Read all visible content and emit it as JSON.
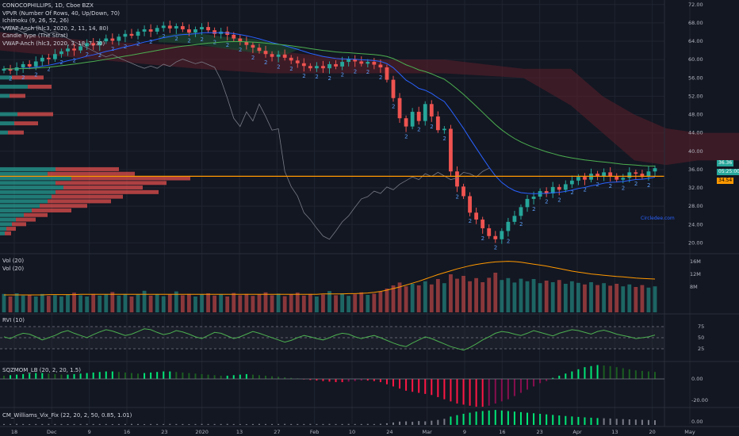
{
  "colors": {
    "background": "#131722",
    "grid": "#1f2430",
    "up": "#26a69a",
    "down": "#ef5350",
    "price_line": "#ff9800",
    "kumo": "#5d1f2a",
    "kumo_green": "#1e4630",
    "ema_green": "#4caf50",
    "ema_blue": "#2962ff",
    "axis_text": "#b2b5be"
  },
  "header": {
    "symbol": "CONOCOPHILLIPS, 1D, Cboe BZX",
    "indicators": [
      "VPVR (Number Of Rows, 40, Up/Down, 70)",
      "Ichimoku (9, 26, 52, 26)",
      "VWAP-Anch (hlc3, 2020, 2, 11, 14, 80)",
      "Candle Type (The Strat)",
      "VWAP-Anch (hlc3, 2020, 3, 18, 7, 30)"
    ]
  },
  "panes": {
    "vol_label": "Vol (20)",
    "vol_label2": "Vol (20)",
    "rvi_label": "RVI (10)",
    "sqz_label": "SQZMOM_LB (20, 2, 20, 1.5)",
    "cm_label": "CM_Williams_Vix_Fix (22, 20, 2, 50, 0.85, 1.01)"
  },
  "price_tags": {
    "tag1": "36.36",
    "tag2": "05:25:00",
    "tag3": "34.54"
  },
  "watermark": "Circledee.com",
  "chart_data": {
    "type": "candlestick",
    "price_axis": [
      "72.00",
      "68.00",
      "64.00",
      "60.00",
      "56.00",
      "52.00",
      "48.00",
      "44.00",
      "40.00",
      "36.00",
      "32.00",
      "28.00",
      "24.00",
      "20.00"
    ],
    "vol_axis": [
      "16M",
      "12M",
      "8M"
    ],
    "rvi_axis": [
      "75",
      "50",
      "25"
    ],
    "sqz_axis": [
      "0.00",
      "-20.00"
    ],
    "cm_axis": [
      "0.00"
    ],
    "time_axis": [
      "18",
      "Dec",
      "9",
      "16",
      "23",
      "2020",
      "13",
      "27",
      "Feb",
      "10",
      "24",
      "Mar",
      "9",
      "16",
      "23",
      "Apr",
      "13",
      "20",
      "May"
    ],
    "ylim": [
      18,
      73
    ],
    "candles_summary": {
      "start_approx": 58.0,
      "peak_approx": 67.5,
      "trough_approx": 20.8,
      "last_approx": 36.0
    },
    "closes": [
      58,
      57.6,
      58.3,
      59,
      58.5,
      59.6,
      60.4,
      60.1,
      61.2,
      61.8,
      62.4,
      62,
      62.9,
      63.6,
      63.1,
      64,
      64.6,
      64.1,
      65,
      65.6,
      65.2,
      66.1,
      66.6,
      66.1,
      66.9,
      67.4,
      66.8,
      67.3,
      66.6,
      65.9,
      66.6,
      67.1,
      66.4,
      65.6,
      66.1,
      65.4,
      64.6,
      63.9,
      63.2,
      62.6,
      61.9,
      61.2,
      60.6,
      61.1,
      60.4,
      59.8,
      59.2,
      58.6,
      58.1,
      58.6,
      58.1,
      59,
      58.5,
      59.5,
      60.1,
      59.6,
      59.1,
      59.5,
      58.9,
      58.3,
      55.6,
      51.6,
      47.2,
      45.4,
      48.6,
      46.6,
      50.3,
      47.6,
      44.6,
      44.9,
      35.6,
      32.3,
      30.2,
      26.6,
      25.1,
      23.2,
      21.5,
      20.8,
      22.6,
      24.6,
      25.9,
      27.8,
      29.6,
      30.1,
      31.3,
      30.8,
      32.2,
      31.6,
      32.8,
      33.6,
      34.4,
      33.8,
      35.1,
      34.5,
      35.4,
      34.6,
      33.8,
      34.2,
      35.4,
      35.1,
      34.4,
      35.6,
      36.3
    ],
    "volumes": [
      5.8,
      5,
      6,
      5.3,
      5.5,
      5,
      5.8,
      5.2,
      5.4,
      5,
      5.6,
      6.2,
      5.4,
      5,
      5.8,
      5.3,
      5.6,
      6.4,
      5.3,
      5.8,
      5,
      5.6,
      6.8,
      5.3,
      5.7,
      5.1,
      5.6,
      6.6,
      5.4,
      5.8,
      5,
      5.6,
      6,
      5.3,
      5.7,
      5,
      6.1,
      5.4,
      5.8,
      5.2,
      5.6,
      6.3,
      5.4,
      5.9,
      5.1,
      5.7,
      6.2,
      5.3,
      5.8,
      5,
      5.6,
      6.7,
      5.4,
      6,
      5.2,
      5.7,
      6.3,
      5.5,
      5.9,
      6.5,
      7.5,
      8.5,
      9.4,
      8.2,
      9,
      8.5,
      9.8,
      8.8,
      10.5,
      9.2,
      12,
      10.6,
      11.5,
      9.8,
      10.8,
      9.5,
      10.9,
      12.5,
      10.2,
      10.8,
      9.4,
      10.6,
      9.8,
      10.5,
      9.2,
      10,
      9.5,
      10.2,
      9,
      9.8,
      9.3,
      8.8,
      9.5,
      8.6,
      9.2,
      8.4,
      9,
      8.2,
      8.8,
      8,
      8.6,
      7.8,
      8.2
    ],
    "vol_ma": [
      5.5,
      5.5,
      5.5,
      5.5,
      5.5,
      5.5,
      5.5,
      5.6,
      5.6,
      5.6,
      5.6,
      5.6,
      5.7,
      5.7,
      5.7,
      5.7,
      5.7,
      5.7,
      5.7,
      5.7,
      5.7,
      5.7,
      5.7,
      5.7,
      5.7,
      5.7,
      5.7,
      5.7,
      5.7,
      5.7,
      5.7,
      5.7,
      5.7,
      5.7,
      5.7,
      5.7,
      5.7,
      5.7,
      5.7,
      5.7,
      5.7,
      5.7,
      5.7,
      5.7,
      5.7,
      5.7,
      5.7,
      5.7,
      5.7,
      5.7,
      5.8,
      5.8,
      5.8,
      5.8,
      5.9,
      5.9,
      6,
      6.1,
      6.3,
      6.6,
      7,
      7.5,
      8,
      8.6,
      9.2,
      9.8,
      10.5,
      11.2,
      11.9,
      12.5,
      13.1,
      13.7,
      14.2,
      14.7,
      15.1,
      15.4,
      15.7,
      15.9,
      16,
      16.1,
      16,
      15.8,
      15.5,
      15.2,
      14.9,
      14.6,
      14.2,
      13.8,
      13.4,
      13,
      12.7,
      12.4,
      12.1,
      11.9,
      11.7,
      11.5,
      11.3,
      11.2,
      11,
      10.8,
      10.7,
      10.6,
      10.5
    ],
    "rvi": [
      52,
      48,
      55,
      60,
      58,
      52,
      45,
      50,
      55,
      62,
      66,
      60,
      55,
      50,
      57,
      63,
      68,
      65,
      60,
      55,
      58,
      64,
      70,
      68,
      62,
      57,
      60,
      66,
      63,
      58,
      52,
      48,
      55,
      62,
      60,
      54,
      48,
      52,
      58,
      64,
      60,
      55,
      50,
      45,
      40,
      44,
      50,
      55,
      52,
      48,
      45,
      50,
      56,
      60,
      58,
      52,
      48,
      52,
      55,
      50,
      44,
      38,
      33,
      30,
      38,
      45,
      52,
      48,
      42,
      36,
      30,
      26,
      22,
      28,
      36,
      45,
      52,
      60,
      64,
      62,
      58,
      55,
      60,
      66,
      62,
      58,
      54,
      60,
      64,
      68,
      66,
      62,
      58,
      64,
      67,
      63,
      58,
      55,
      52,
      48,
      50,
      52,
      56
    ],
    "sqz": [
      3,
      3.5,
      4,
      4.5,
      5,
      5.5,
      5.5,
      5,
      4.5,
      4,
      4,
      4.5,
      5,
      5.5,
      6,
      6.5,
      7,
      7,
      6.5,
      6,
      5.5,
      5,
      5.5,
      6,
      6.5,
      7,
      7,
      6.5,
      6,
      5.5,
      5,
      4.5,
      4,
      3.5,
      3,
      3,
      3.5,
      4,
      4.5,
      4,
      3.5,
      3,
      2.5,
      2,
      1.5,
      1,
      0.5,
      -0.5,
      -1,
      -1.5,
      -2,
      -2.5,
      -3,
      -3,
      -2.5,
      -2,
      -1.5,
      -1.5,
      -2,
      -3,
      -5,
      -7,
      -9,
      -11,
      -12,
      -13,
      -14,
      -15,
      -17,
      -19,
      -21,
      -23,
      -24,
      -25,
      -26,
      -26,
      -25,
      -23,
      -21,
      -19,
      -16,
      -13,
      -10,
      -7,
      -4,
      -2,
      1,
      3,
      5,
      7,
      9,
      11,
      12,
      13,
      12.5,
      12,
      11,
      10,
      9,
      8,
      7.5,
      7,
      6.5
    ],
    "cmwvf": [
      0.8,
      0.8,
      0.9,
      0.8,
      0.7,
      0.8,
      0.8,
      0.9,
      0.8,
      0.8,
      0.7,
      0.8,
      0.8,
      0.9,
      0.8,
      0.8,
      0.8,
      0.7,
      0.8,
      0.8,
      0.9,
      0.8,
      0.7,
      0.8,
      0.8,
      0.8,
      0.9,
      0.8,
      0.8,
      0.7,
      0.8,
      0.9,
      0.8,
      0.8,
      0.8,
      0.9,
      0.8,
      0.8,
      0.7,
      0.8,
      0.9,
      0.8,
      0.8,
      0.8,
      0.9,
      0.8,
      0.8,
      0.8,
      0.9,
      0.8,
      0.8,
      0.9,
      0.8,
      0.8,
      0.9,
      0.8,
      0.8,
      0.9,
      0.8,
      1,
      1.5,
      2.2,
      3,
      3.2,
      2.8,
      3.5,
      3.2,
      3.8,
      4.5,
      5.5,
      7.5,
      8.8,
      10,
      11,
      12,
      12.5,
      13,
      13.5,
      13,
      12.5,
      12,
      11.5,
      11,
      10.5,
      10,
      9.5,
      9,
      8.5,
      8,
      7.6,
      7.2,
      6.8,
      6.5,
      6.2,
      6,
      5.8,
      5.5,
      5.2,
      5,
      4.8,
      4.6,
      4.4,
      4.2
    ]
  }
}
